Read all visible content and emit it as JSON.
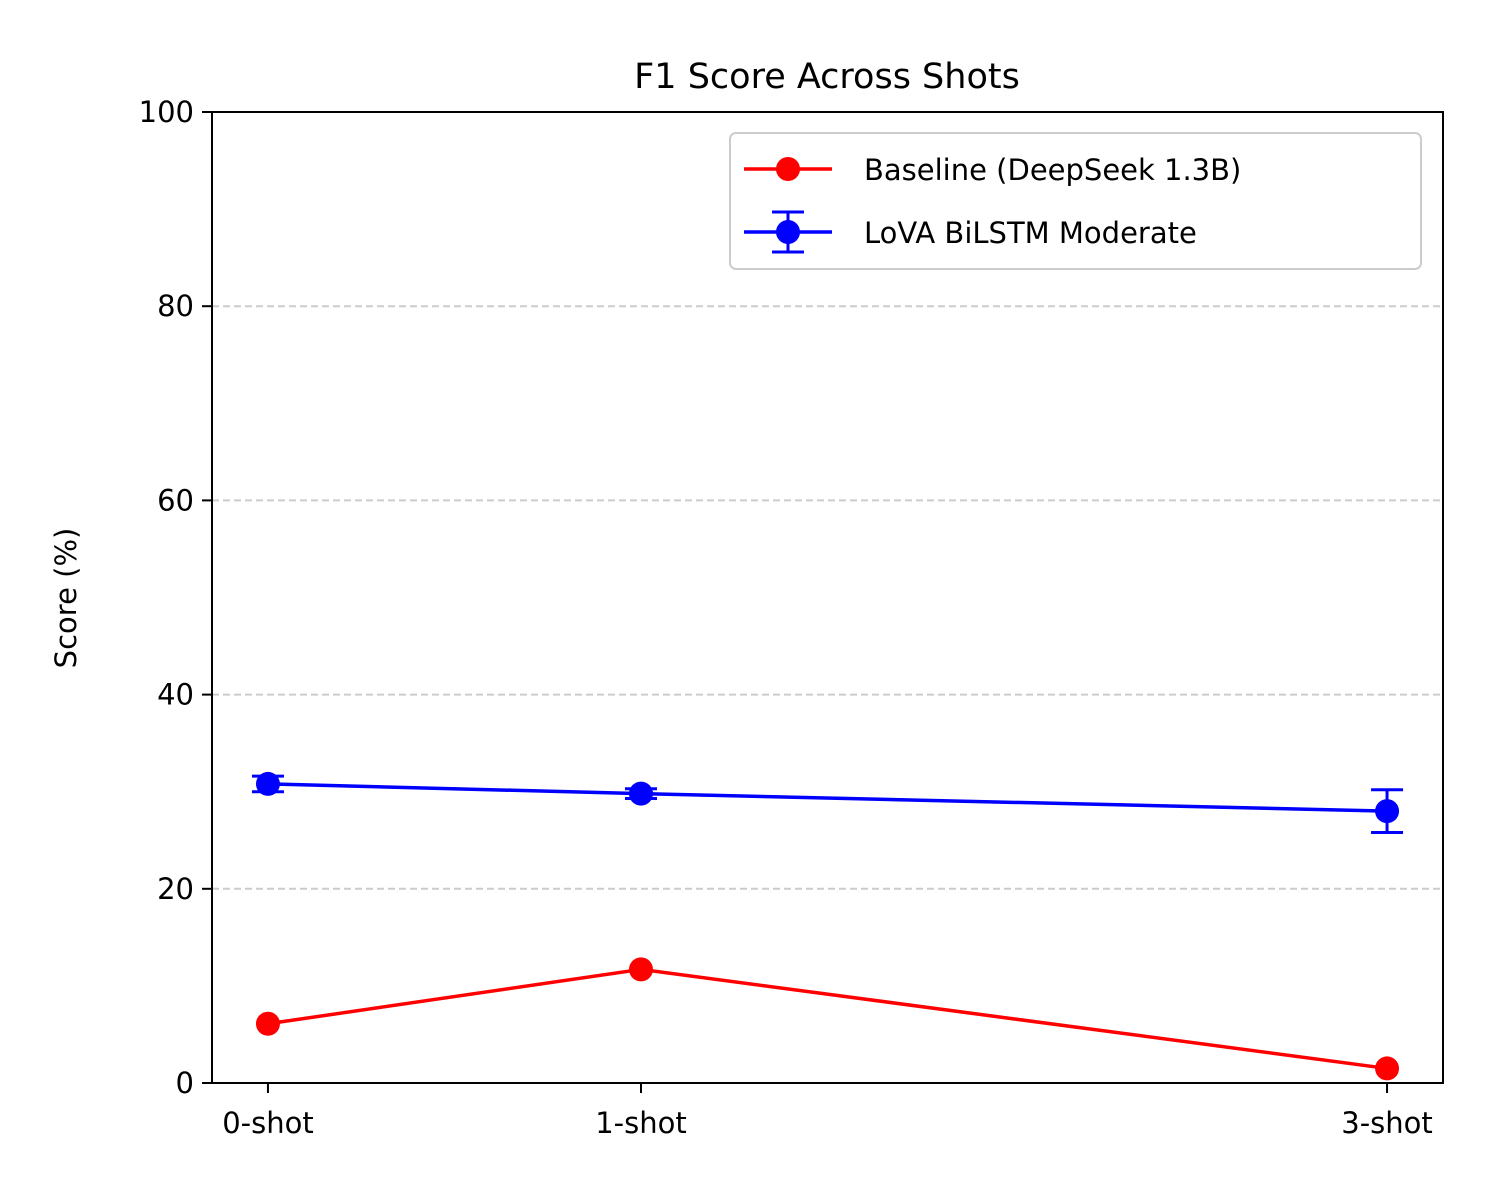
{
  "chart_data": {
    "type": "line",
    "title": "F1 Score Across Shots",
    "xlabel": "",
    "ylabel": "Score (%)",
    "x": [
      0,
      1,
      3
    ],
    "xticklabels": [
      "0-shot",
      "1-shot",
      "3-shot"
    ],
    "xlim": [
      -0.15,
      3.15
    ],
    "ylim": [
      0,
      100
    ],
    "yticks": [
      0,
      20,
      40,
      60,
      80,
      100
    ],
    "grid": "y-dashed",
    "legend_position": "top-right",
    "series": [
      {
        "name": "Baseline (DeepSeek 1.3B)",
        "color": "#ff0000",
        "marker": "circle",
        "values": [
          6.1,
          11.7,
          1.5
        ],
        "errors": null
      },
      {
        "name": "LoVA BiLSTM Moderate",
        "color": "#0000ff",
        "marker": "circle",
        "values": [
          30.8,
          29.8,
          28.0
        ],
        "errors": [
          0.8,
          0.5,
          2.2
        ]
      }
    ]
  }
}
